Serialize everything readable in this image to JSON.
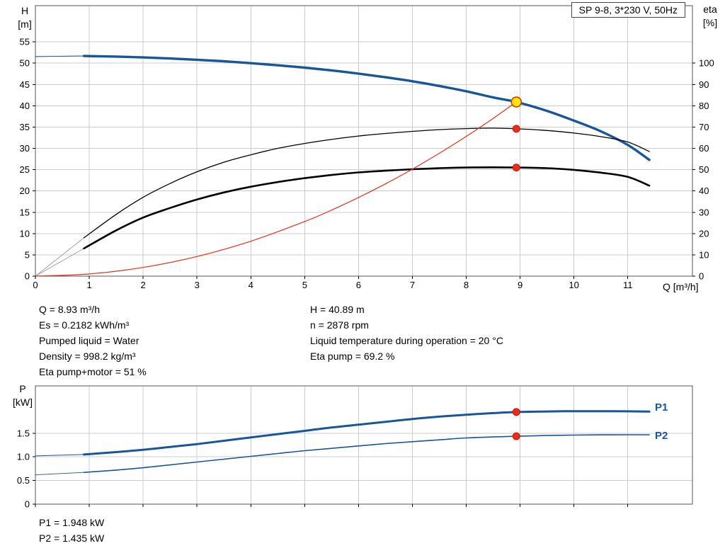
{
  "title_box": "SP 9-8, 3*230 V, 50Hz",
  "colors": {
    "curve_blue": "#17569b",
    "duty_red": "#e62f17",
    "duty_yellow": "#ffe900",
    "grid": "#cccccc"
  },
  "duty_info_left": [
    "Q = 8.93 m³/h",
    "Es = 0.2182 kWh/m³",
    "Pumped liquid = Water",
    "Density = 998.2 kg/m³",
    "Eta pump+motor = 51 %"
  ],
  "duty_info_right": [
    "H = 40.89 m",
    "n = 2878 rpm",
    "Liquid temperature during operation = 20 °C",
    "Eta pump = 69.2 %"
  ],
  "power_info": [
    "P1 = 1.948 kW",
    "P2 = 1.435 kW"
  ],
  "chart_data": [
    {
      "type": "line",
      "title": "SP 9-8, 3*230 V, 50Hz",
      "xlabel": "Q [m³/h]",
      "ylabel_left_lines": [
        "H",
        "[m]"
      ],
      "ylabel_right_lines": [
        "eta",
        "[%]"
      ],
      "xlim": [
        0,
        12.2
      ],
      "ylim_left": [
        0,
        63.5
      ],
      "ylim_right": [
        0,
        127
      ],
      "xticks": [
        0,
        1,
        2,
        3,
        4,
        5,
        6,
        7,
        8,
        9,
        10,
        11
      ],
      "xtick_labels": [
        "0",
        "1",
        "2",
        "3",
        "4",
        "5",
        "6",
        "7",
        "8",
        "9",
        "10",
        "11"
      ],
      "yticks_left": [
        0,
        5,
        10,
        15,
        20,
        25,
        30,
        35,
        40,
        45,
        50,
        55
      ],
      "ytick_labels_left": [
        "0",
        "5",
        "10",
        "15",
        "20",
        "25",
        "30",
        "35",
        "40",
        "45",
        "50",
        "55"
      ],
      "yticks_right": [
        0,
        10,
        20,
        30,
        40,
        50,
        60,
        70,
        80,
        90,
        100
      ],
      "ytick_labels_right": [
        "0",
        "10",
        "20",
        "30",
        "40",
        "50",
        "60",
        "70",
        "80",
        "90",
        "100"
      ],
      "series": [
        {
          "name": "H-Q curve low-flow",
          "axis": "left",
          "color": "#17569b",
          "width": 1.1,
          "x": [
            0,
            0.45,
            0.9
          ],
          "y": [
            51.55,
            51.62,
            51.68
          ]
        },
        {
          "name": "H-Q curve",
          "axis": "left",
          "color": "#17569b",
          "width": 3.4,
          "x": [
            0.9,
            1.5,
            2,
            2.5,
            3,
            3.5,
            4,
            4.5,
            5,
            5.5,
            6,
            6.5,
            7,
            7.5,
            8,
            8.5,
            8.93,
            9.5,
            10,
            10.5,
            11,
            11.4
          ],
          "y": [
            51.68,
            51.55,
            51.35,
            51.1,
            50.8,
            50.45,
            50.0,
            49.5,
            48.95,
            48.3,
            47.55,
            46.7,
            45.75,
            44.65,
            43.4,
            41.95,
            40.89,
            38.8,
            36.5,
            34.0,
            30.8,
            27.3
          ]
        },
        {
          "name": "Eta pump low-flow",
          "axis": "right",
          "color": "#9a9a9a",
          "width": 0.9,
          "x": [
            0,
            0.9
          ],
          "y": [
            0,
            18
          ]
        },
        {
          "name": "Eta pump",
          "axis": "right",
          "color": "#000000",
          "width": 1.3,
          "x": [
            0.9,
            1.5,
            2,
            2.5,
            3,
            3.5,
            4,
            4.5,
            5,
            5.5,
            6,
            6.5,
            7,
            7.5,
            8,
            8.5,
            8.93,
            9.5,
            10,
            10.5,
            11,
            11.4
          ],
          "y": [
            18,
            29,
            37,
            43.5,
            49,
            53.5,
            57,
            60,
            62.3,
            64.2,
            65.8,
            67,
            68,
            68.8,
            69.3,
            69.5,
            69.2,
            68.4,
            67.2,
            65.5,
            63.0,
            58.5
          ]
        },
        {
          "name": "Eta pump+motor low-flow",
          "axis": "right",
          "color": "#9a9a9a",
          "width": 0.9,
          "x": [
            0,
            0.9
          ],
          "y": [
            0,
            13
          ]
        },
        {
          "name": "Eta pump+motor",
          "axis": "right",
          "color": "#000000",
          "width": 2.6,
          "x": [
            0.9,
            1.5,
            2,
            2.5,
            3,
            3.5,
            4,
            4.5,
            5,
            5.5,
            6,
            6.5,
            7,
            7.5,
            8,
            8.5,
            8.93,
            9.5,
            10,
            10.5,
            11,
            11.4
          ],
          "y": [
            13,
            21.5,
            27.5,
            32,
            36,
            39.3,
            42,
            44.2,
            46,
            47.5,
            48.7,
            49.5,
            50.2,
            50.7,
            51.0,
            51.1,
            51.0,
            50.7,
            49.9,
            48.6,
            46.6,
            42.5
          ]
        },
        {
          "name": "System curve",
          "axis": "left",
          "color": "#e62f17",
          "width": 1.2,
          "x": [
            0,
            1,
            2,
            3,
            4,
            5,
            5.5,
            6,
            6.5,
            7,
            7.5,
            8,
            8.5,
            8.93
          ],
          "y": [
            0,
            0.51,
            2.05,
            4.61,
            8.2,
            12.82,
            15.51,
            18.46,
            21.66,
            25.12,
            28.84,
            32.81,
            37.04,
            40.89
          ]
        }
      ],
      "markers": [
        {
          "name": "duty-point",
          "axis": "left",
          "x": 8.93,
          "y": 40.89,
          "r": 7,
          "fill": "#ffe900",
          "stroke": "#e62f17",
          "stroke_width": 1.6
        },
        {
          "name": "eta-pump-point",
          "axis": "right",
          "x": 8.93,
          "y": 69.2,
          "r": 5,
          "fill": "#e62f17",
          "stroke": "#c01a10",
          "stroke_width": 1
        },
        {
          "name": "eta-pump-motor-point",
          "axis": "right",
          "x": 8.93,
          "y": 51,
          "r": 5,
          "fill": "#e62f17",
          "stroke": "#c01a10",
          "stroke_width": 1
        }
      ]
    },
    {
      "type": "line",
      "ylabel_left_lines": [
        "P",
        "[kW]"
      ],
      "xlim": [
        0,
        12.2
      ],
      "ylim_left": [
        0,
        2.5
      ],
      "xticks": [
        0,
        1,
        2,
        3,
        4,
        5,
        6,
        7,
        8,
        9,
        10,
        11
      ],
      "yticks_left": [
        0,
        0.5,
        1.0,
        1.5
      ],
      "ytick_labels_left": [
        "0",
        "0.5",
        "1.0",
        "1.5"
      ],
      "end_labels": [
        "P1",
        "P2"
      ],
      "series": [
        {
          "name": "P1 low-flow",
          "axis": "left",
          "color": "#17569b",
          "width": 1,
          "x": [
            0,
            0.9
          ],
          "y": [
            1.02,
            1.05
          ]
        },
        {
          "name": "P1",
          "axis": "left",
          "color": "#17569b",
          "width": 3,
          "x": [
            0.9,
            1.5,
            2,
            2.5,
            3,
            3.5,
            4,
            4.5,
            5,
            5.5,
            6,
            6.5,
            7,
            7.5,
            8,
            8.5,
            8.93,
            9.5,
            10,
            10.5,
            11,
            11.4
          ],
          "y": [
            1.05,
            1.1,
            1.15,
            1.21,
            1.27,
            1.34,
            1.41,
            1.48,
            1.55,
            1.62,
            1.68,
            1.74,
            1.8,
            1.85,
            1.89,
            1.925,
            1.948,
            1.96,
            1.965,
            1.965,
            1.962,
            1.957
          ]
        },
        {
          "name": "P2 low-flow",
          "axis": "left",
          "color": "#17569b",
          "width": 0.9,
          "x": [
            0,
            0.9
          ],
          "y": [
            0.62,
            0.67
          ]
        },
        {
          "name": "P2",
          "axis": "left",
          "color": "#17569b",
          "width": 1.6,
          "x": [
            0.9,
            1.5,
            2,
            2.5,
            3,
            3.5,
            4,
            4.5,
            5,
            5.5,
            6,
            6.5,
            7,
            7.5,
            8,
            8.5,
            8.93,
            9.5,
            10,
            10.5,
            11,
            11.4
          ],
          "y": [
            0.67,
            0.72,
            0.77,
            0.83,
            0.89,
            0.95,
            1.01,
            1.07,
            1.13,
            1.18,
            1.23,
            1.28,
            1.32,
            1.36,
            1.4,
            1.42,
            1.435,
            1.45,
            1.46,
            1.465,
            1.467,
            1.467
          ]
        }
      ],
      "markers": [
        {
          "name": "p1-point",
          "axis": "left",
          "x": 8.93,
          "y": 1.948,
          "r": 5,
          "fill": "#e62f17",
          "stroke": "#c01a10",
          "stroke_width": 1
        },
        {
          "name": "p2-point",
          "axis": "left",
          "x": 8.93,
          "y": 1.435,
          "r": 5,
          "fill": "#e62f17",
          "stroke": "#c01a10",
          "stroke_width": 1
        }
      ]
    }
  ]
}
